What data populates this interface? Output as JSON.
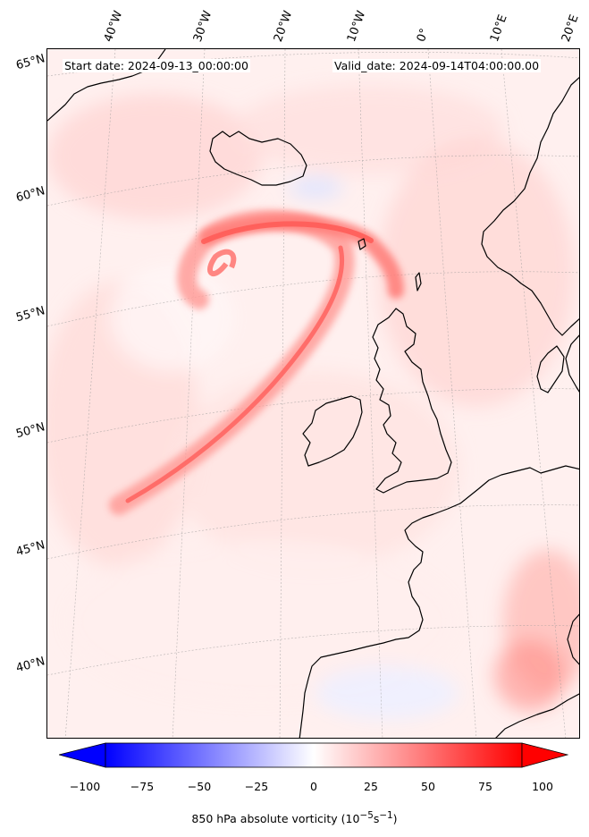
{
  "header": {
    "start_date": "Start date: 2024-09-13_00:00:00",
    "valid_date": "Valid_date: 2024-09-14T04:00:00.00"
  },
  "longitude_labels": [
    "40°W",
    "30°W",
    "20°W",
    "10°W",
    "0°",
    "10°E",
    "20°E"
  ],
  "latitude_labels": [
    "65°N",
    "60°N",
    "55°N",
    "50°N",
    "45°N",
    "40°N"
  ],
  "colorbar": {
    "label": "850 hPa absolute vorticity (10",
    "label_exp": "−5",
    "label_mid": "s",
    "label_exp2": "−1",
    "label_end": ")",
    "ticks": [
      "−100",
      "−75",
      "−50",
      "−25",
      "0",
      "25",
      "50",
      "75",
      "100"
    ],
    "min": -100,
    "max": 100,
    "low_color": "#0000ff",
    "mid_color": "#ffffff",
    "high_color": "#ff0000"
  },
  "colors": {
    "coastline": "#000000",
    "background_field": "#fff0ef",
    "vorticity_band": "#ff6a6a"
  }
}
